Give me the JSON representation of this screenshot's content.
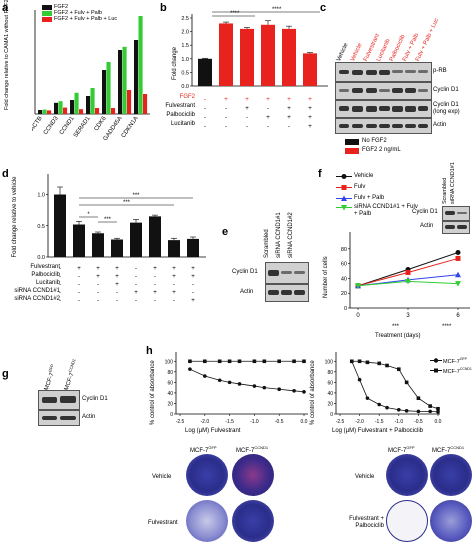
{
  "panel_letters": {
    "a": "a",
    "b": "b",
    "c": "c",
    "d": "d",
    "e": "e",
    "f": "f",
    "g": "g",
    "h": "h"
  },
  "colors": {
    "black": "#111111",
    "red": "#e8221c",
    "green": "#33cc33",
    "blue": "#3344ee",
    "gray": "#d0d0d0"
  },
  "panel_a": {
    "ylabel": "Fold change relative to CAMA1 without FGF2",
    "legend": [
      "FGF2",
      "FGF2 + Fulv + Palb",
      "FGF2 + Fulv + Palb + Luc"
    ],
    "genes": [
      "ACTB",
      "CCND3",
      "CCND1",
      "SERAD1",
      "CDK6",
      "GADD45A",
      "CDKN1A"
    ],
    "chart_data": {
      "type": "bar",
      "categories": [
        "ACTB",
        "CCND3",
        "CCND1",
        "SERAD1",
        "CDK6",
        "GADD45A",
        "CDKN1A"
      ],
      "series": [
        {
          "name": "FGF2",
          "values": [
            1.0,
            2.8,
            3.5,
            4.5,
            11.0,
            16.0,
            18.5
          ]
        },
        {
          "name": "FGF2 + Fulv + Palb",
          "values": [
            1.1,
            3.2,
            5.3,
            6.5,
            13.0,
            16.8,
            24.5
          ]
        },
        {
          "name": "FGF2 + Fulv + Palb + Luc",
          "values": [
            0.9,
            1.6,
            1.2,
            1.5,
            1.5,
            6.0,
            5.0
          ]
        }
      ],
      "ylim": [
        0,
        25
      ]
    }
  },
  "panel_b": {
    "ylabel": "Fold change",
    "yticks": [
      "0.0",
      "0.5",
      "1.0",
      "1.5",
      "2.0",
      "2.5"
    ],
    "row_labels": [
      "FGF2",
      "Fulvestrant",
      "Palbociclib",
      "Lucitanib"
    ],
    "signs": [
      [
        "-",
        "+",
        "+",
        "+",
        "+",
        "+"
      ],
      [
        "-",
        "-",
        "+",
        "-",
        "+",
        "+"
      ],
      [
        "-",
        "-",
        "-",
        "+",
        "+",
        "+"
      ],
      [
        "-",
        "-",
        "-",
        "-",
        "-",
        "+"
      ]
    ],
    "sig1": "****",
    "sig2": "****",
    "chart_data": {
      "type": "bar",
      "categories": [
        "1",
        "2",
        "3",
        "4",
        "5",
        "6"
      ],
      "values": [
        1.0,
        2.3,
        2.1,
        2.25,
        2.1,
        1.2
      ],
      "errors": [
        0.02,
        0.05,
        0.05,
        0.15,
        0.1,
        0.03
      ],
      "ylim": [
        0,
        2.5
      ]
    }
  },
  "panel_c": {
    "lanes": [
      "Vehicle",
      "Vehicle",
      "Fulvestrant",
      "Lucitanib",
      "Palbociclib",
      "Fulv + Palb",
      "Fulv + Palb + Luc"
    ],
    "rows": [
      "p-RB",
      "Cyclin D1",
      "Cyclin D1 (long exp)",
      "Actin"
    ],
    "legend": [
      "No FGF2",
      "FGF2 2 ng/mL"
    ]
  },
  "panel_d": {
    "ylabel": "Fold change relative to vehicle",
    "yticks": [
      "0.0",
      "0.5",
      "1.0"
    ],
    "row_labels": [
      "Fulvestrant",
      "Palbociclib",
      "Lucitanib",
      "siRNA CCND1#1",
      "siRNA CCND1#2"
    ],
    "signs": [
      [
        "-",
        "+",
        "+",
        "+",
        "-",
        "+",
        "+",
        "+"
      ],
      [
        "-",
        "-",
        "+",
        "+",
        "-",
        "-",
        "+",
        "+"
      ],
      [
        "-",
        "-",
        "-",
        "+",
        "-",
        "-",
        "-",
        "-"
      ],
      [
        "-",
        "-",
        "-",
        "-",
        "+",
        "+",
        "+",
        "-"
      ],
      [
        "-",
        "-",
        "-",
        "-",
        "-",
        "-",
        "-",
        "+"
      ]
    ],
    "sig": [
      "***",
      "***",
      "***",
      "*"
    ],
    "chart_data": {
      "type": "bar",
      "categories": [
        "1",
        "2",
        "3",
        "4",
        "5",
        "6",
        "7",
        "8"
      ],
      "values": [
        1.0,
        0.52,
        0.38,
        0.28,
        0.55,
        0.65,
        0.27,
        0.29
      ],
      "errors": [
        0.12,
        0.05,
        0.02,
        0.02,
        0.05,
        0.02,
        0.03,
        0.03
      ],
      "ylim": [
        0,
        1.2
      ]
    }
  },
  "panel_e": {
    "lanes": [
      "Scrambled",
      "siRNA CCND1#1",
      "siRNA CCND1#2"
    ],
    "rows": [
      "Cyclin D1",
      "Actin"
    ]
  },
  "panel_f": {
    "legend": [
      "Vehicle",
      "Fulv",
      "Fulv + Palb",
      "siRNA CCND1#1 + Fulv + Palb"
    ],
    "ylabel": "Number of cells",
    "xlabel": "Treatment (days)",
    "yticks": [
      "0",
      "20",
      "40",
      "60",
      "80"
    ],
    "xticks": [
      "0",
      "3",
      "6"
    ],
    "sig_day3": "***",
    "sig_day6": "****",
    "inset": {
      "lanes": [
        "Scrambled",
        "siRNA CCND1#1"
      ],
      "rows": [
        "Cyclin D1",
        "Actin"
      ]
    },
    "chart_data": {
      "type": "line",
      "x": [
        0,
        3,
        6
      ],
      "series": [
        {
          "name": "Vehicle",
          "values": [
            30,
            52,
            75
          ],
          "color": "#111111"
        },
        {
          "name": "Fulv",
          "values": [
            30,
            48,
            67
          ],
          "color": "#e8221c"
        },
        {
          "name": "Fulv + Palb",
          "values": [
            30,
            38,
            45
          ],
          "color": "#3344ee"
        },
        {
          "name": "siRNA CCND1#1 + Fulv + Palb",
          "values": [
            30,
            36,
            33
          ],
          "color": "#33cc33"
        }
      ],
      "ylim": [
        0,
        100
      ]
    }
  },
  "panel_g": {
    "lanes": [
      "MCF-7GFP",
      "MCF-7CCND1"
    ],
    "lane_main": "MCF-7",
    "lane_sups": [
      "GFP",
      "CCND1"
    ],
    "rows": [
      "Cyclin D1",
      "Actin"
    ]
  },
  "panel_h": {
    "ylabel": "% control of absorbance",
    "left": {
      "xlabel": "Log (µM) Fulvestrant",
      "xticks": [
        "-2.5",
        "-2.0",
        "-1.5",
        "-1.0",
        "-0.5",
        "0.0"
      ],
      "yticks": [
        "0",
        "20",
        "40",
        "60",
        "80",
        "100"
      ],
      "chart_data": {
        "type": "line",
        "x": [
          -2.3,
          -2.0,
          -1.7,
          -1.5,
          -1.3,
          -1.0,
          -0.8,
          -0.5,
          -0.2,
          0.0
        ],
        "series": [
          {
            "name": "MCF-7CCND1",
            "values": [
              100,
              100,
              100,
              100,
              100,
              100,
              100,
              100,
              100,
              100
            ]
          },
          {
            "name": "MCF-7GFP",
            "values": [
              85,
              72,
              64,
              60,
              57,
              53,
              50,
              47,
              44,
              42
            ]
          }
        ],
        "ylim": [
          0,
          110
        ]
      }
    },
    "right": {
      "xlabel": "Log (µM) Fulvestrant + Palbociclib",
      "xticks": [
        "-2.5",
        "-2.0",
        "-1.5",
        "-1.0",
        "-0.5",
        "0.0"
      ],
      "yticks": [
        "0",
        "20",
        "40",
        "60",
        "80",
        "100"
      ],
      "legend": [
        "MCF-7GFP",
        "MCF-7CCND1"
      ],
      "legend_main": "MCF-7",
      "legend_sups": [
        "GFP",
        "CCND1"
      ],
      "chart_data": {
        "type": "line",
        "x": [
          -2.2,
          -2.0,
          -1.8,
          -1.5,
          -1.3,
          -1.0,
          -0.8,
          -0.5,
          -0.2,
          0.0
        ],
        "series": [
          {
            "name": "MCF-7GFP",
            "values": [
              100,
              65,
              30,
              18,
              12,
              8,
              6,
              5,
              5,
              4
            ]
          },
          {
            "name": "MCF-7CCND1",
            "values": [
              100,
              100,
              98,
              96,
              92,
              85,
              60,
              30,
              15,
              10
            ]
          }
        ],
        "ylim": [
          0,
          110
        ]
      }
    },
    "wells_left": {
      "cols": [
        "MCF-7GFP",
        "MCF-7CCND1"
      ],
      "rows": [
        "Vehicle",
        "Fulvestrant"
      ]
    },
    "wells_right": {
      "cols": [
        "MCF-7GFP",
        "MCF-7CCND1"
      ],
      "rows": [
        "Vehicle",
        "Fulvestrant + Palbociclib"
      ]
    },
    "well_col_main": "MCF-7",
    "well_col_sups": [
      "GFP",
      "CCND1"
    ]
  }
}
